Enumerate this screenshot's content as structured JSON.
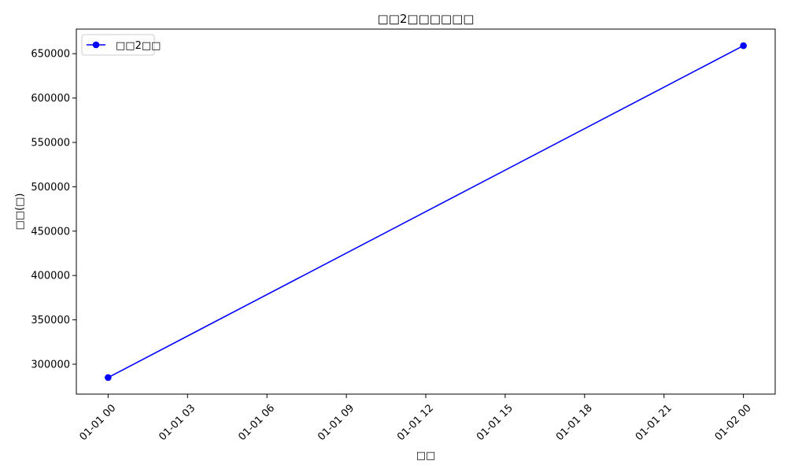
{
  "chart_data": {
    "type": "line",
    "title": "□□2□□□□□□",
    "xlabel": "□□",
    "ylabel": "□□(□)",
    "x": [
      "01-01 00",
      "01-02 00"
    ],
    "series": [
      {
        "name": "□□2□□",
        "values": [
          285000,
          659000
        ],
        "color": "#0000ff",
        "marker": "circle"
      }
    ],
    "x_ticks": [
      "01-01 00",
      "01-01 03",
      "01-01 06",
      "01-01 09",
      "01-01 12",
      "01-01 15",
      "01-01 18",
      "01-01 21",
      "01-02 00"
    ],
    "y_ticks": [
      "300000",
      "350000",
      "400000",
      "450000",
      "500000",
      "550000",
      "600000",
      "650000"
    ],
    "x_tick_values_hours": [
      0,
      3,
      6,
      9,
      12,
      15,
      18,
      21,
      24
    ],
    "y_tick_values": [
      300000,
      350000,
      400000,
      450000,
      500000,
      550000,
      600000,
      650000
    ],
    "series_x_hours": [
      0,
      24
    ],
    "xlim_hours": [
      -1.2,
      25.2
    ],
    "ylim": [
      266300,
      677700
    ],
    "grid": false,
    "legend_position": "top-left"
  }
}
